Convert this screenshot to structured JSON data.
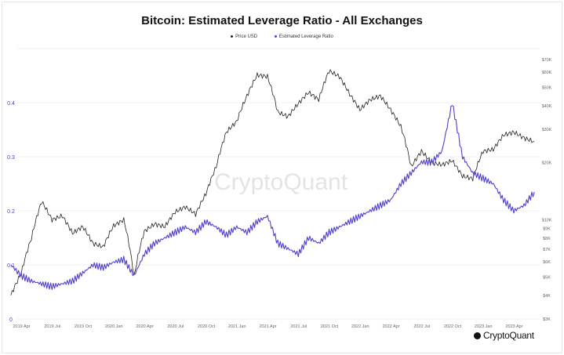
{
  "chart_data": {
    "type": "line",
    "title": "Bitcoin: Estimated Leverage Ratio - All Exchanges",
    "watermark": "CryptoQuant",
    "legend_placement": "top-center",
    "grid": true,
    "x_ticks": [
      "2019 Apr",
      "2019 Jul",
      "2019 Oct",
      "2020 Jan",
      "2020 Apr",
      "2020 Jul",
      "2020 Oct",
      "2021 Jan",
      "2021 Apr",
      "2021 Jul",
      "2021 Oct",
      "2022 Jan",
      "2022 Apr",
      "2022 Jul",
      "2022 Oct",
      "2023 Jan",
      "2023 Apr"
    ],
    "y_left": {
      "ticks": [
        "0",
        "0.1",
        "0.2",
        "0.3",
        "0.4"
      ],
      "range": [
        0,
        0.4
      ],
      "color": "#4f3fd0"
    },
    "y_right": {
      "scale": "log",
      "ticks": [
        "$3K",
        "$4K",
        "$5K",
        "$6K",
        "$7K",
        "$8K",
        "$9K",
        "$10K",
        "$20K",
        "$30K",
        "$40K",
        "$50K",
        "$60K",
        "$70K"
      ],
      "range": [
        3000,
        70000
      ]
    },
    "dates": [
      "2019-03",
      "2019-04",
      "2019-05",
      "2019-06",
      "2019-07",
      "2019-08",
      "2019-09",
      "2019-10",
      "2019-11",
      "2019-12",
      "2020-01",
      "2020-02",
      "2020-03",
      "2020-04",
      "2020-05",
      "2020-06",
      "2020-07",
      "2020-08",
      "2020-09",
      "2020-10",
      "2020-11",
      "2020-12",
      "2021-01",
      "2021-02",
      "2021-03",
      "2021-04",
      "2021-05",
      "2021-06",
      "2021-07",
      "2021-08",
      "2021-09",
      "2021-10",
      "2021-11",
      "2021-12",
      "2022-01",
      "2022-02",
      "2022-03",
      "2022-04",
      "2022-05",
      "2022-06",
      "2022-07",
      "2022-08",
      "2022-09",
      "2022-10",
      "2022-11",
      "2022-12",
      "2023-01",
      "2023-02",
      "2023-03",
      "2023-04",
      "2023-05",
      "2023-06"
    ],
    "series": [
      {
        "name": "Price USD",
        "axis": "right",
        "color": "#222222",
        "values": [
          4000,
          5200,
          8000,
          12500,
          10000,
          10500,
          8500,
          9200,
          7500,
          7200,
          9300,
          10000,
          5000,
          8700,
          9500,
          9200,
          11000,
          11700,
          10700,
          13700,
          19000,
          29000,
          33000,
          45000,
          58000,
          57000,
          37000,
          35000,
          41000,
          47000,
          43000,
          61000,
          57000,
          46000,
          38000,
          43000,
          45000,
          38000,
          31000,
          19000,
          23000,
          20000,
          19500,
          20500,
          17000,
          16500,
          23000,
          23500,
          28000,
          29000,
          27000,
          25800
        ]
      },
      {
        "name": "Estimated Leverage Ratio",
        "axis": "left",
        "color": "#4f3fd0",
        "values": [
          0.1,
          0.08,
          0.07,
          0.065,
          0.06,
          0.065,
          0.07,
          0.085,
          0.1,
          0.095,
          0.105,
          0.11,
          0.08,
          0.12,
          0.14,
          0.15,
          0.16,
          0.17,
          0.16,
          0.18,
          0.17,
          0.155,
          0.17,
          0.16,
          0.18,
          0.19,
          0.14,
          0.13,
          0.12,
          0.15,
          0.14,
          0.16,
          0.17,
          0.18,
          0.19,
          0.2,
          0.21,
          0.22,
          0.25,
          0.27,
          0.29,
          0.29,
          0.31,
          0.4,
          0.3,
          0.27,
          0.26,
          0.25,
          0.22,
          0.2,
          0.21,
          0.235
        ]
      }
    ]
  }
}
